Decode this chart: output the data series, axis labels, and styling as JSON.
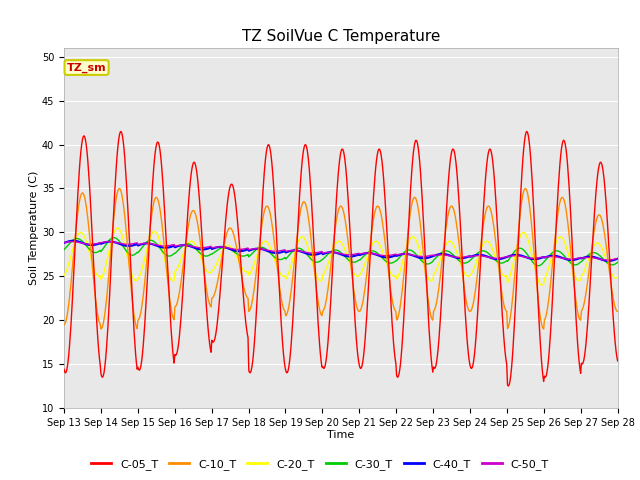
{
  "title": "TZ SoilVue C Temperature",
  "xlabel": "Time",
  "ylabel": "Soil Temperature (C)",
  "ylim": [
    10,
    51
  ],
  "yticks": [
    10,
    15,
    20,
    25,
    30,
    35,
    40,
    45,
    50
  ],
  "series_colors": {
    "C-05_T": "#ff0000",
    "C-10_T": "#ff8c00",
    "C-20_T": "#ffff00",
    "C-30_T": "#00cc00",
    "C-40_T": "#0000ff",
    "C-50_T": "#cc00cc"
  },
  "legend_label": "TZ_sm",
  "legend_box_color": "#ffffcc",
  "legend_box_edge": "#cccc00",
  "legend_text_color": "#cc0000",
  "fig_bg_color": "#ffffff",
  "plot_bg_color": "#e8e8e8",
  "n_days": 15,
  "start_day": 13,
  "points_per_day": 48,
  "title_fontsize": 11,
  "axis_label_fontsize": 8,
  "tick_fontsize": 7,
  "legend_fontsize": 8
}
